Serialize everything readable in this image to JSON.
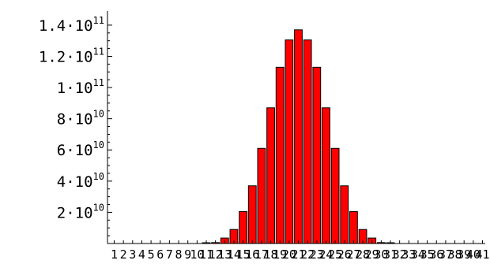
{
  "chart_data": {
    "type": "bar",
    "title": "",
    "xlabel": "",
    "ylabel": "",
    "categories": [
      "1",
      "2",
      "3",
      "4",
      "5",
      "6",
      "7",
      "8",
      "9",
      "10",
      "11",
      "12",
      "13",
      "14",
      "15",
      "16",
      "17",
      "18",
      "19",
      "20",
      "21",
      "22",
      "23",
      "24",
      "25",
      "26",
      "27",
      "28",
      "29",
      "30",
      "31",
      "32",
      "33",
      "34",
      "35",
      "36",
      "37",
      "38",
      "39",
      "40",
      "41"
    ],
    "values": [
      0,
      0,
      0,
      0,
      0,
      0,
      0,
      0,
      0,
      0,
      1000000,
      600000000,
      3500000000,
      9000000000,
      20500000000,
      37000000000,
      61000000000,
      87000000000,
      113000000000,
      130500000000,
      137000000000,
      130500000000,
      113000000000,
      87000000000,
      61000000000,
      37000000000,
      20500000000,
      9000000000,
      3500000000,
      600000000,
      1000000,
      0,
      0,
      0,
      0,
      0,
      0,
      0,
      0,
      0,
      0
    ],
    "ylim": [
      0,
      145000000000
    ],
    "y_ticks": [
      {
        "value": 20000000000,
        "mantissa": "2",
        "exponent": "10"
      },
      {
        "value": 40000000000,
        "mantissa": "4",
        "exponent": "10"
      },
      {
        "value": 60000000000,
        "mantissa": "6",
        "exponent": "10"
      },
      {
        "value": 80000000000,
        "mantissa": "8",
        "exponent": "10"
      },
      {
        "value": 100000000000,
        "mantissa": "1",
        "exponent": "11"
      },
      {
        "value": 120000000000,
        "mantissa": "1.2",
        "exponent": "11"
      },
      {
        "value": 140000000000,
        "mantissa": "1.4",
        "exponent": "11"
      }
    ],
    "y_tick_separator": "·",
    "y_tick_base": "10",
    "grid": false,
    "colors": {
      "bar": "#ff0000",
      "bar_edge": "#000000",
      "axis": "#000000"
    }
  }
}
